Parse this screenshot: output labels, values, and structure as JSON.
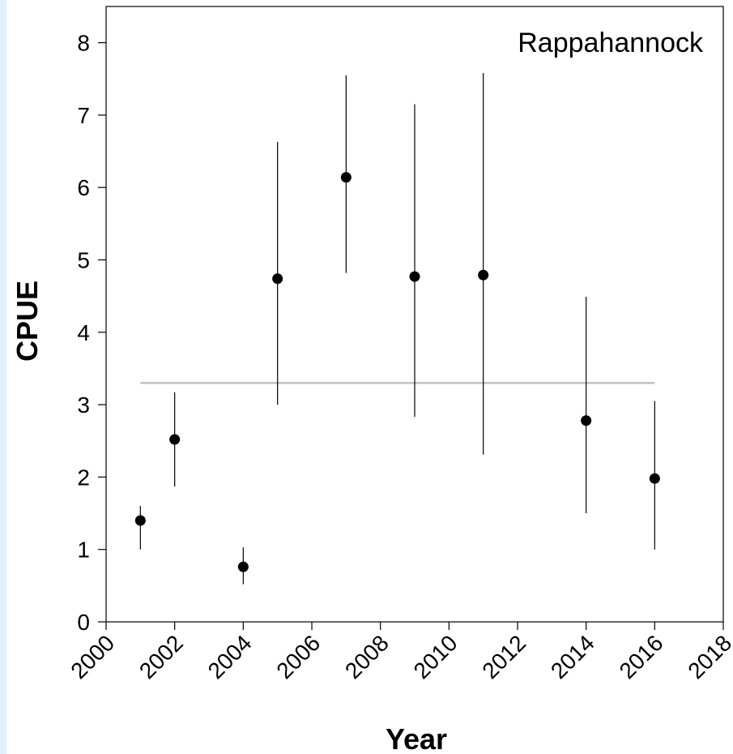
{
  "chart_data": {
    "type": "scatter",
    "title": "",
    "annotation": "Rappahannock",
    "xlabel": "Year",
    "ylabel": "CPUE",
    "xlim": [
      2000,
      2018
    ],
    "ylim": [
      0,
      8.5
    ],
    "x_ticks": [
      "2000",
      "2002",
      "2004",
      "2006",
      "2008",
      "2010",
      "2012",
      "2014",
      "2016",
      "2018"
    ],
    "y_ticks": [
      "0",
      "1",
      "2",
      "3",
      "4",
      "5",
      "6",
      "7",
      "8"
    ],
    "grid": false,
    "series": [
      {
        "points": [
          {
            "x": 2001,
            "y": 1.4,
            "low": 1.0,
            "high": 1.6
          },
          {
            "x": 2002,
            "y": 2.52,
            "low": 1.87,
            "high": 3.17
          },
          {
            "x": 2004,
            "y": 0.76,
            "low": 0.52,
            "high": 1.03
          },
          {
            "x": 2005,
            "y": 4.74,
            "low": 3.0,
            "high": 6.63
          },
          {
            "x": 2007,
            "y": 6.14,
            "low": 4.82,
            "high": 7.55
          },
          {
            "x": 2009,
            "y": 4.77,
            "low": 2.83,
            "high": 7.15
          },
          {
            "x": 2011,
            "y": 4.79,
            "low": 2.31,
            "high": 7.58
          },
          {
            "x": 2014,
            "y": 2.78,
            "low": 1.5,
            "high": 4.49
          },
          {
            "x": 2016,
            "y": 1.98,
            "low": 1.0,
            "high": 3.05
          }
        ]
      }
    ],
    "reference_line": {
      "y": 3.3,
      "x_start": 2001,
      "x_end": 2016,
      "color": "#c0c0c0"
    },
    "marker_color": "#000000"
  }
}
